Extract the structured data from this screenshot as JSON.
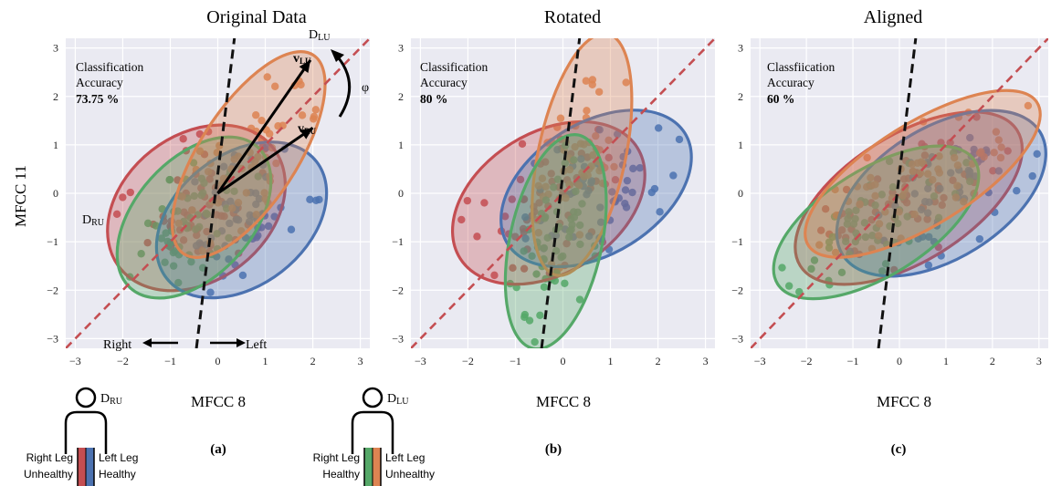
{
  "colors": {
    "red": "#c44e52",
    "blue": "#4c72b0",
    "orange": "#dd8452",
    "green": "#55a868",
    "plot_bg": "#eaeaf2",
    "grid": "#ffffff"
  },
  "shared": {
    "ylabel": "MFCC 11",
    "xticks": [
      "−3",
      "−2",
      "−1",
      "0",
      "1",
      "2",
      "3"
    ],
    "yticks": [
      "3",
      "2",
      "1",
      "0",
      "−1",
      "−2",
      "−3"
    ]
  },
  "chart_data": [
    {
      "type": "scatter",
      "title": "Original Data",
      "xlabel": "MFCC 8",
      "ylabel": "MFCC 11",
      "xlim": [
        -3.2,
        3.2
      ],
      "ylim": [
        -3.2,
        3.2
      ],
      "grid": true,
      "panel_letter": "(a)",
      "accuracy": {
        "line1": "Classification",
        "line2": "Accuracy",
        "value": "73.75 %"
      },
      "annotations": {
        "d_lu": "D",
        "d_lu_sub": "LU",
        "d_ru": "D",
        "d_ru_sub": "RU",
        "v_lu": "v",
        "v_lu_sub": "LU",
        "v_ru": "v",
        "v_ru_sub": "RU",
        "phi": "φ",
        "right": "Right",
        "left": "Left"
      },
      "series": [
        {
          "name": "Right Leg Unhealthy (red)",
          "ellipse": {
            "cx": -0.45,
            "cy": -0.3,
            "rx": 2.05,
            "ry": 1.5,
            "angle": 38
          }
        },
        {
          "name": "Left Leg Healthy (blue)",
          "ellipse": {
            "cx": 0.5,
            "cy": -0.55,
            "rx": 2.0,
            "ry": 1.35,
            "angle": 38
          }
        },
        {
          "name": "Right Leg Healthy (green)",
          "ellipse": {
            "cx": -0.5,
            "cy": -0.5,
            "rx": 2.0,
            "ry": 1.2,
            "angle": 48
          }
        },
        {
          "name": "Left Leg Unhealthy (orange)",
          "ellipse": {
            "cx": 0.65,
            "cy": 0.8,
            "rx": 2.5,
            "ry": 1.0,
            "angle": 57
          }
        }
      ],
      "boundary_line": {
        "x1": -0.45,
        "y1": -3.2,
        "x2": 0.35,
        "y2": 3.2
      },
      "diag_line": {
        "x1": -3.2,
        "y1": -3.2,
        "x2": 3.2,
        "y2": 3.2
      },
      "vectors": [
        {
          "name": "v_LU",
          "x": 1.95,
          "y": 2.75
        },
        {
          "name": "v_RU",
          "x": 2.0,
          "y": 1.35
        }
      ]
    },
    {
      "type": "scatter",
      "title": "Rotated",
      "xlabel": "MFCC 8",
      "xlim": [
        -3.2,
        3.2
      ],
      "ylim": [
        -3.2,
        3.2
      ],
      "grid": true,
      "panel_letter": "(b)",
      "accuracy": {
        "line1": "Classification",
        "line2": "Accuracy",
        "value": "80 %"
      },
      "series": [
        {
          "name": "red",
          "ellipse": {
            "cx": -0.3,
            "cy": -0.2,
            "rx": 2.2,
            "ry": 1.45,
            "angle": 32
          }
        },
        {
          "name": "blue",
          "ellipse": {
            "cx": 0.7,
            "cy": 0.1,
            "rx": 2.2,
            "ry": 1.35,
            "angle": 32
          }
        },
        {
          "name": "orange",
          "ellipse": {
            "cx": 0.4,
            "cy": 0.8,
            "rx": 2.6,
            "ry": 0.9,
            "angle": 78
          }
        },
        {
          "name": "green",
          "ellipse": {
            "cx": -0.15,
            "cy": -1.0,
            "rx": 2.3,
            "ry": 0.95,
            "angle": 78
          }
        }
      ],
      "boundary_line": {
        "x1": -0.45,
        "y1": -3.2,
        "x2": 0.35,
        "y2": 3.2
      },
      "diag_line": {
        "x1": -3.2,
        "y1": -3.2,
        "x2": 3.2,
        "y2": 3.2
      }
    },
    {
      "type": "scatter",
      "title": "Aligned",
      "xlabel": "MFCC 8",
      "xlim": [
        -3.2,
        3.2
      ],
      "ylim": [
        -3.2,
        3.2
      ],
      "grid": true,
      "panel_letter": "(c)",
      "accuracy": {
        "line1": "Classfiication",
        "line2": "Accuracy",
        "value": "60 %"
      },
      "series": [
        {
          "name": "red",
          "ellipse": {
            "cx": 0.2,
            "cy": -0.1,
            "rx": 2.75,
            "ry": 1.3,
            "angle": 32
          }
        },
        {
          "name": "blue",
          "ellipse": {
            "cx": 0.9,
            "cy": 0.0,
            "rx": 2.5,
            "ry": 1.35,
            "angle": 32
          }
        },
        {
          "name": "green",
          "ellipse": {
            "cx": -0.5,
            "cy": -0.6,
            "rx": 2.5,
            "ry": 1.1,
            "angle": 32
          }
        },
        {
          "name": "orange",
          "ellipse": {
            "cx": 0.5,
            "cy": 0.4,
            "rx": 2.9,
            "ry": 1.05,
            "angle": 32
          }
        }
      ],
      "boundary_line": {
        "x1": -0.45,
        "y1": -3.2,
        "x2": 0.35,
        "y2": 3.2
      },
      "diag_line": {
        "x1": -3.2,
        "y1": -3.2,
        "x2": 3.2,
        "y2": 3.2
      }
    }
  ],
  "legends": [
    {
      "d_label": "D",
      "d_sub": "RU",
      "right_line1": "Right Leg",
      "right_line2": "Unhealthy",
      "left_line1": "Left Leg",
      "left_line2": "Healthy"
    },
    {
      "d_label": "D",
      "d_sub": "LU",
      "right_line1": "Right Leg",
      "right_line2": "Healthy",
      "left_line1": "Left Leg",
      "left_line2": "Unhealthy"
    }
  ]
}
